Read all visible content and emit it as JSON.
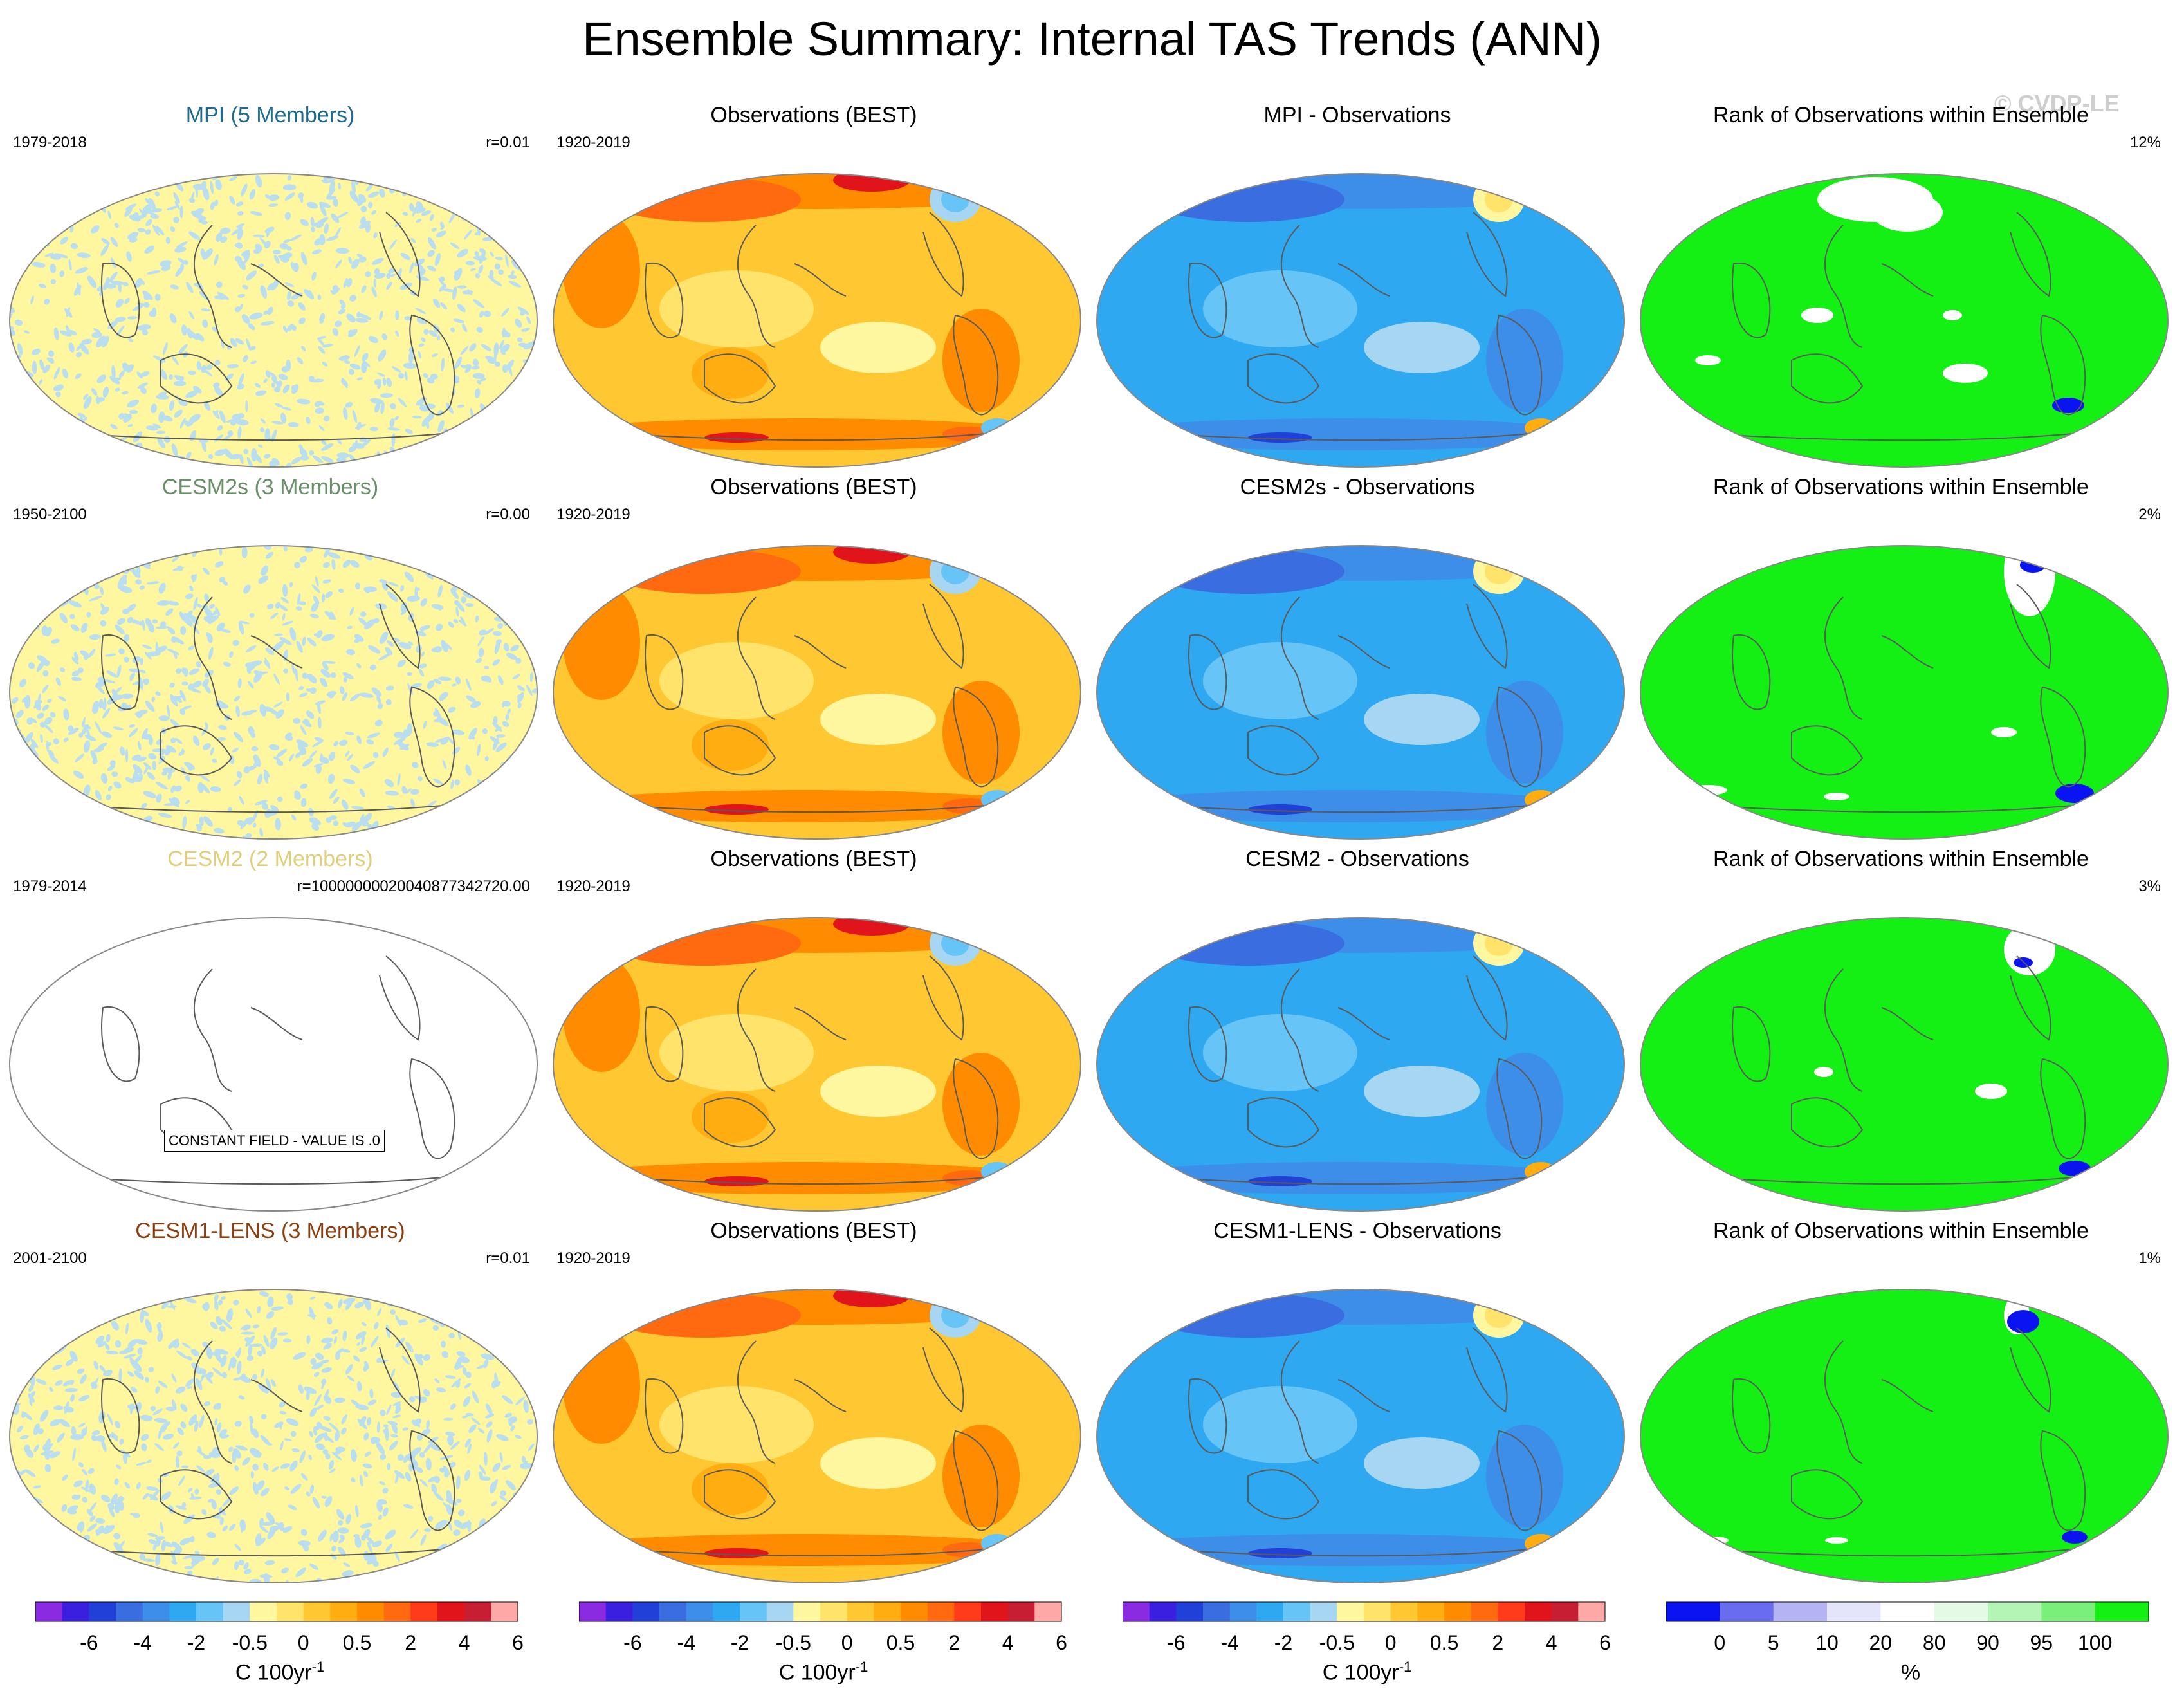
{
  "title": "Ensemble Summary: Internal TAS Trends (ANN)",
  "credit": "© CVDP-LE",
  "colors": {
    "land": "#5a5a5a",
    "map_border": "#888888"
  },
  "rows": [
    {
      "model": {
        "title": "MPI (5 Members)",
        "title_color": "#1f6b8f",
        "period": "1979-2018",
        "r": "r=0.01",
        "style": "noise"
      },
      "obs": {
        "title": "Observations (BEST)",
        "period": "1920-2019"
      },
      "diff": {
        "title": "MPI - Observations"
      },
      "rank": {
        "title": "Rank of Observations within Ensemble",
        "value": "12%"
      }
    },
    {
      "model": {
        "title": "CESM2s (3 Members)",
        "title_color": "#6b8f6b",
        "period": "1950-2100",
        "r": "r=0.00",
        "style": "noise"
      },
      "obs": {
        "title": "Observations (BEST)",
        "period": "1920-2019"
      },
      "diff": {
        "title": "CESM2s - Observations"
      },
      "rank": {
        "title": "Rank of Observations within Ensemble",
        "value": "2%"
      }
    },
    {
      "model": {
        "title": "CESM2 (2 Members)",
        "title_color": "#e0cf7a",
        "period": "1979-2014",
        "r": "r=10000000020040877342720.00",
        "style": "constant",
        "message": "CONSTANT FIELD - VALUE IS .0"
      },
      "obs": {
        "title": "Observations (BEST)",
        "period": "1920-2019"
      },
      "diff": {
        "title": "CESM2 - Observations"
      },
      "rank": {
        "title": "Rank of Observations within Ensemble",
        "value": "3%"
      }
    },
    {
      "model": {
        "title": "CESM1-LENS (3 Members)",
        "title_color": "#8a3f12",
        "period": "2001-2100",
        "r": "r=0.01",
        "style": "noise"
      },
      "obs": {
        "title": "Observations (BEST)",
        "period": "1920-2019"
      },
      "diff": {
        "title": "CESM1-LENS - Observations"
      },
      "rank": {
        "title": "Rank of Observations within Ensemble",
        "value": "1%"
      }
    }
  ],
  "chart_data": {
    "type": "heatmap",
    "projection": "Robinson (Pacific-centered)",
    "colorbars": [
      {
        "label": "C 100yr",
        "label_exponent": "-1",
        "ticks": [
          "-6",
          "-4",
          "-2",
          "-0.5",
          "0",
          "0.5",
          "2",
          "4",
          "6"
        ],
        "colors": [
          "#8a2be2",
          "#3b1fe0",
          "#2040d8",
          "#3a6de0",
          "#3d8ee8",
          "#2ea8f0",
          "#67c4f6",
          "#a6d6f2",
          "#fff6a0",
          "#ffe36b",
          "#ffc832",
          "#ffad10",
          "#ff8c00",
          "#ff6a10",
          "#ff3b1a",
          "#e0141a",
          "#c81e34",
          "#ffa8a8"
        ]
      },
      {
        "label": "C 100yr",
        "label_exponent": "-1",
        "ticks": [
          "-6",
          "-4",
          "-2",
          "-0.5",
          "0",
          "0.5",
          "2",
          "4",
          "6"
        ],
        "colors": [
          "#8a2be2",
          "#3b1fe0",
          "#2040d8",
          "#3a6de0",
          "#3d8ee8",
          "#2ea8f0",
          "#67c4f6",
          "#a6d6f2",
          "#fff6a0",
          "#ffe36b",
          "#ffc832",
          "#ffad10",
          "#ff8c00",
          "#ff6a10",
          "#ff3b1a",
          "#e0141a",
          "#c81e34",
          "#ffa8a8"
        ]
      },
      {
        "label": "C 100yr",
        "label_exponent": "-1",
        "ticks": [
          "-6",
          "-4",
          "-2",
          "-0.5",
          "0",
          "0.5",
          "2",
          "4",
          "6"
        ],
        "colors": [
          "#8a2be2",
          "#3b1fe0",
          "#2040d8",
          "#3a6de0",
          "#3d8ee8",
          "#2ea8f0",
          "#67c4f6",
          "#a6d6f2",
          "#fff6a0",
          "#ffe36b",
          "#ffc832",
          "#ffad10",
          "#ff8c00",
          "#ff6a10",
          "#ff3b1a",
          "#e0141a",
          "#c81e34",
          "#ffa8a8"
        ]
      },
      {
        "label": "%",
        "label_exponent": "",
        "ticks": [
          "0",
          "5",
          "10",
          "20",
          "80",
          "90",
          "95",
          "100"
        ],
        "colors": [
          "#0a14f0",
          "#6a6cf0",
          "#b4b4f4",
          "#e4e4fa",
          "#ffffff",
          "#e4fae4",
          "#b4f4b4",
          "#7af07a",
          "#14f014"
        ]
      }
    ]
  }
}
